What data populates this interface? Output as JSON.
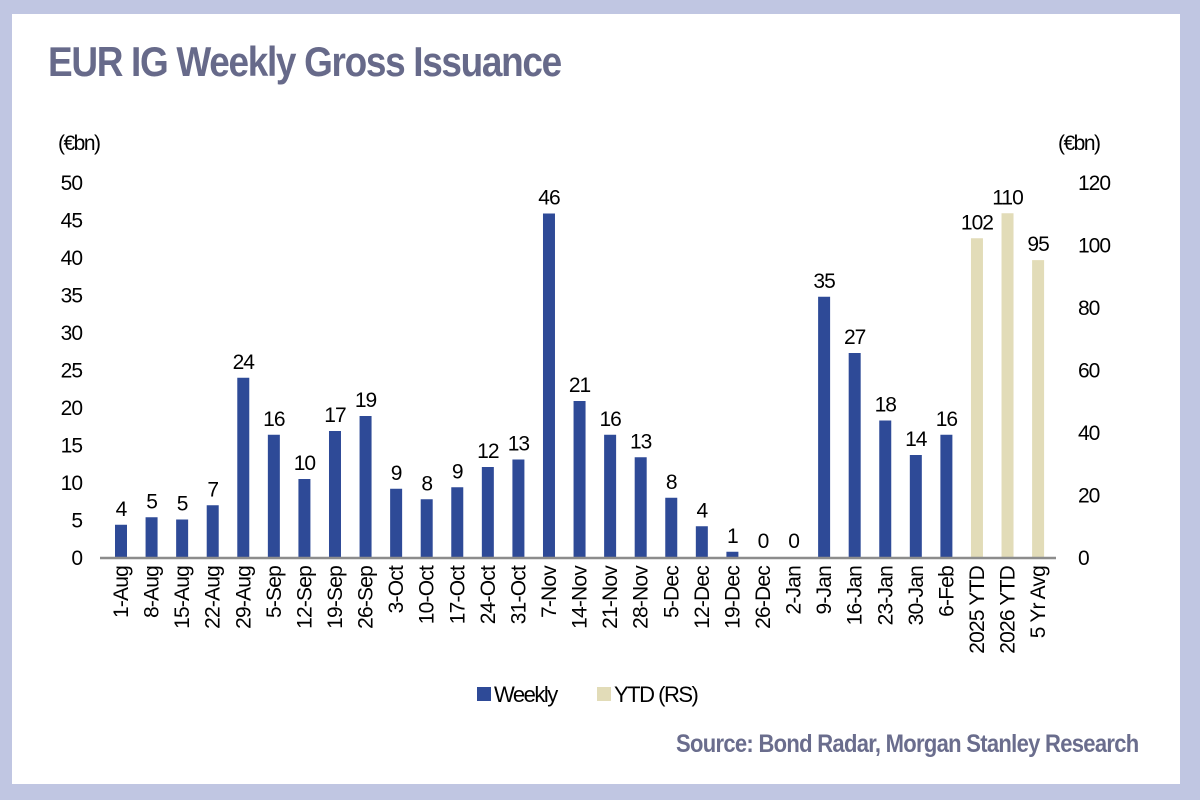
{
  "title": "EUR IG Weekly Gross Issuance",
  "source": "Source: Bond Radar, Morgan Stanley Research",
  "colors": {
    "weekly": "#2e4a97",
    "ytd": "#e2dcb8",
    "axis": "#8c8c8c",
    "title": "#676a8a",
    "frame": "#c0c6e2"
  },
  "chart_data": {
    "type": "bar",
    "title": "EUR IG Weekly Gross Issuance",
    "left_axis": {
      "label": "(€bn)",
      "range": [
        0,
        50
      ],
      "ticks": [
        0,
        5,
        10,
        15,
        20,
        25,
        30,
        35,
        40,
        45,
        50
      ]
    },
    "right_axis": {
      "label": "(€bn)",
      "range": [
        0,
        120
      ],
      "ticks": [
        0,
        20,
        40,
        60,
        80,
        100,
        120
      ]
    },
    "categories": [
      "1-Aug",
      "8-Aug",
      "15-Aug",
      "22-Aug",
      "29-Aug",
      "5-Sep",
      "12-Sep",
      "19-Sep",
      "26-Sep",
      "3-Oct",
      "10-Oct",
      "17-Oct",
      "24-Oct",
      "31-Oct",
      "7-Nov",
      "14-Nov",
      "21-Nov",
      "28-Nov",
      "5-Dec",
      "12-Dec",
      "19-Dec",
      "26-Dec",
      "2-Jan",
      "9-Jan",
      "16-Jan",
      "23-Jan",
      "30-Jan",
      "6-Feb",
      "2025 YTD",
      "2026 YTD",
      "5 Yr Avg"
    ],
    "series": [
      {
        "name": "Weekly",
        "axis": "left",
        "values": [
          4.3,
          5.3,
          5.0,
          6.9,
          23.9,
          16.3,
          10.4,
          16.8,
          18.8,
          9.1,
          7.7,
          9.3,
          12.0,
          13.0,
          45.8,
          20.8,
          16.3,
          13.3,
          7.9,
          4.1,
          0.7,
          0,
          0,
          34.7,
          27.2,
          18.2,
          13.6,
          16.3,
          null,
          null,
          null
        ],
        "labels": [
          "4",
          "5",
          "5",
          "7",
          "24",
          "16",
          "10",
          "17",
          "19",
          "9",
          "8",
          "9",
          "12",
          "13",
          "46",
          "21",
          "16",
          "13",
          "8",
          "4",
          "1",
          "0",
          "0",
          "35",
          "27",
          "18",
          "14",
          "16",
          "",
          "",
          ""
        ]
      },
      {
        "name": "YTD (RS)",
        "axis": "right",
        "values": [
          null,
          null,
          null,
          null,
          null,
          null,
          null,
          null,
          null,
          null,
          null,
          null,
          null,
          null,
          null,
          null,
          null,
          null,
          null,
          null,
          null,
          null,
          null,
          null,
          null,
          null,
          null,
          null,
          102,
          110,
          95
        ],
        "labels": [
          "",
          "",
          "",
          "",
          "",
          "",
          "",
          "",
          "",
          "",
          "",
          "",
          "",
          "",
          "",
          "",
          "",
          "",
          "",
          "",
          "",
          "",
          "",
          "",
          "",
          "",
          "",
          "",
          "102",
          "110",
          "95"
        ]
      }
    ],
    "legend": {
      "position": "bottom",
      "entries": [
        "Weekly",
        "YTD (RS)"
      ]
    },
    "grid": false
  }
}
